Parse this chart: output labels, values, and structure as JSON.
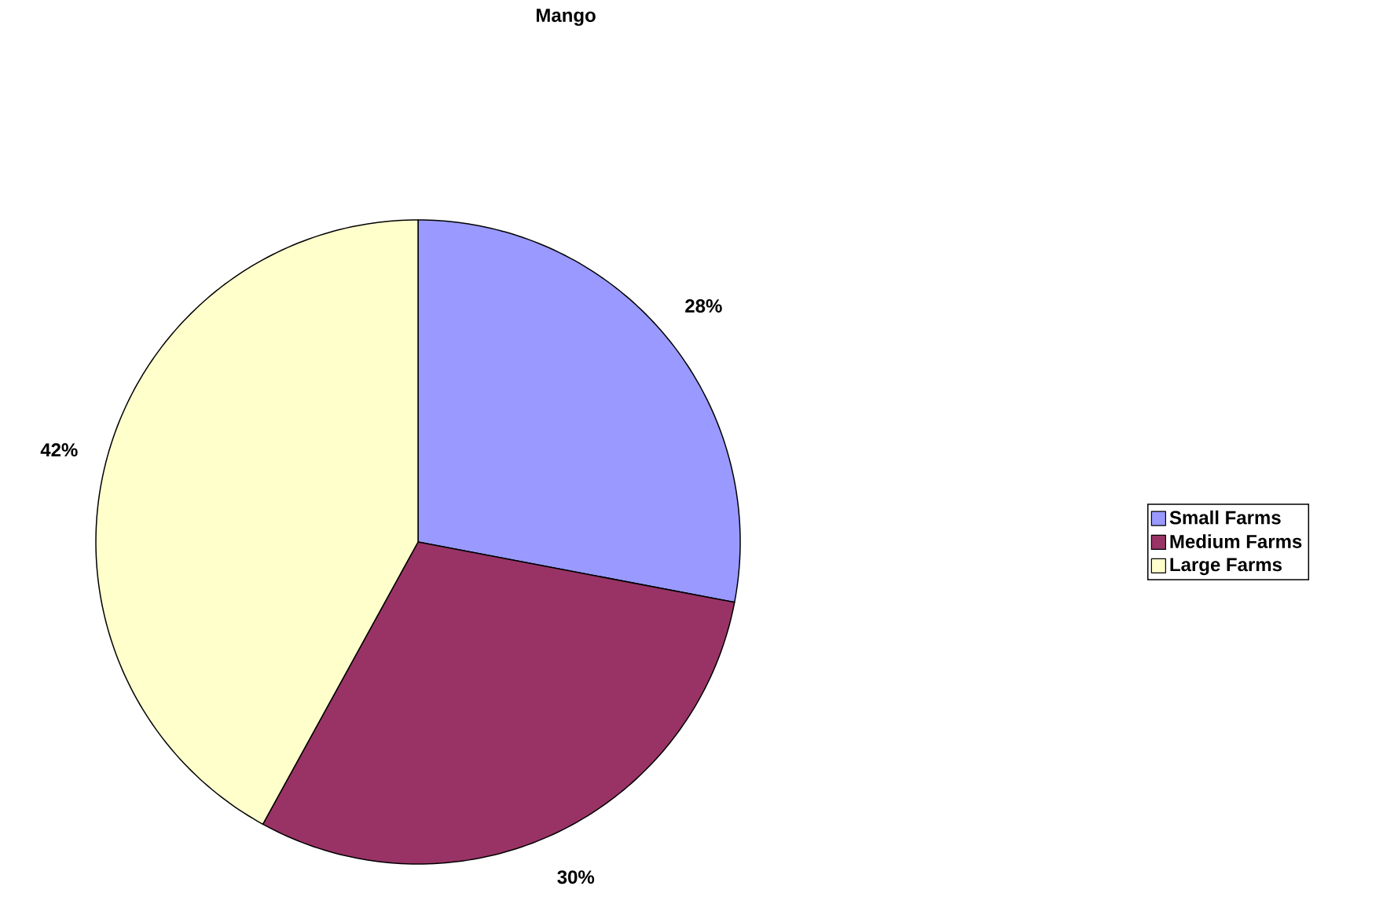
{
  "chart_data": {
    "type": "pie",
    "title": "Mango",
    "categories": [
      "Small Farms",
      "Medium Farms",
      "Large Farms"
    ],
    "values": [
      28,
      30,
      42
    ],
    "colors": [
      "#9999ff",
      "#993366",
      "#ffffcc"
    ],
    "value_labels": [
      "28%",
      "30%",
      "42%"
    ],
    "legend": "right"
  }
}
